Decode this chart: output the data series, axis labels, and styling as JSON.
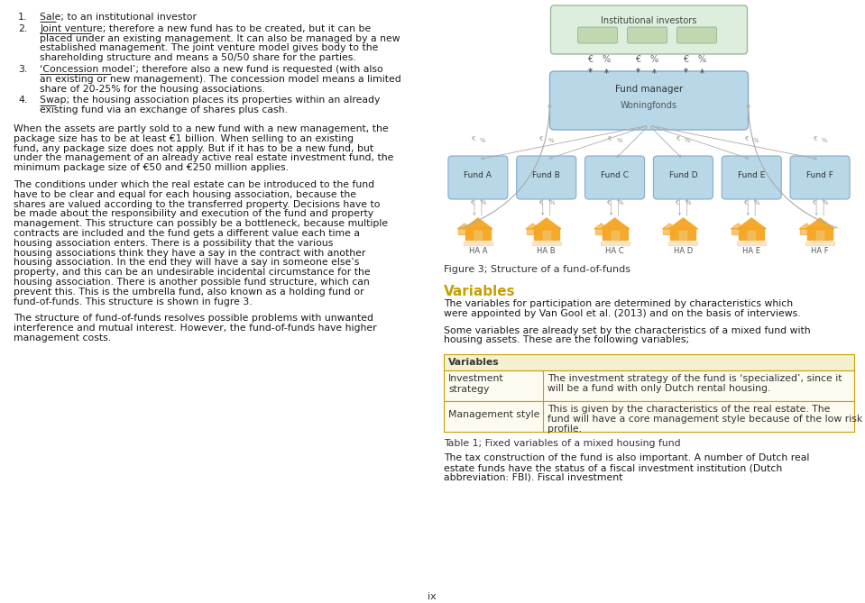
{
  "bg_color": "#ffffff",
  "left_text_blocks": [
    {
      "number": "1.",
      "label": "Sale",
      "rest": "; to an institutional investor"
    },
    {
      "number": "2.",
      "label": "Joint venture",
      "rest": "; therefore a new fund has to be created, but it can be placed under an existing management. It can also be managed by a new established management. The joint venture model gives body to the shareholding structure and means a 50/50 share for the parties."
    },
    {
      "number": "3.",
      "label": "‘Concession model’",
      "rest": "; therefore also a new fund is requested (with also an existing or new management). The concession model means a limited share of 20-25% for the housing associations."
    },
    {
      "number": "4.",
      "label": "Swap",
      "rest": "; the housing association places its properties within an already existing fund via an exchange of shares plus cash."
    }
  ],
  "paragraph1": "When the assets are partly sold to a new fund with a new management, the package size has to be at least €1 billion. When selling to an existing fund, any package size does not apply. But if it has to be a new fund, but under the management of an already active real estate investment fund, the minimum package size of €50 and €250 million applies.",
  "paragraph2": "The conditions under which the real estate can be introduced to the fund have to be clear and equal for each housing association, because the shares are valued according to the transferred property. Decisions have to be made about the responsibility and execution of the fund and property management. This structure can possibly be a bottleneck, because multiple contracts are included and the fund gets a different value each time a housing association enters. There is a possibility that the various housing associations think they have a say in the contract with another housing association. In the end they will have a say in someone else’s property, and this can be an undesirable incidental circumstance for the housing association. There is another possible fund structure, which can prevent this. This is the umbrella fund, also known as a holding fund or fund-of-funds. This structure is shown in fugre 3.",
  "paragraph3": "The structure of fund-of-funds resolves possible problems with unwanted interference and mutual interest. However, the fund-of-funds have higher management costs.",
  "fig_caption": "Figure 3; Structure of a fund-of-funds",
  "section_title": "Variables",
  "section_title_color": "#c8a000",
  "section_para1": "The variables for participation are determined by characteristics which were appointed by Van Gool et al. (2013) and on the basis of interviews.",
  "section_para2": "Some variables are already set by the characteristics of a mixed fund with housing assets. These are the following variables;",
  "table_header": "Variables",
  "table_row1_col1": "Investment\nstrategy",
  "table_row1_col2": "The investment strategy of the fund is ‘specialized’, since it will be a fund with only Dutch rental housing.",
  "table_row2_col1": "Management style",
  "table_row2_col2": "This is given by the characteristics of the real estate. The fund will have a core management style because of the low risk profile.",
  "table_caption": "Table 1; Fixed variables of a mixed housing fund",
  "bottom_para": "The tax construction of the fund is also important. A number of Dutch real estate funds have the status of a fiscal investment institution (Dutch abbreviation: FBI). Fiscal investment",
  "page_number": "ix",
  "diagram": {
    "inst_box_color": "#ddeedd",
    "fund_box_color": "#b8d8e8",
    "sub_box_color": "#b8d8e8",
    "inst_label": "Institutional investors",
    "fund_manager_label": "Fund manager",
    "woningfonds_label": "Woningfonds",
    "fund_labels": [
      "Fund A",
      "Fund B",
      "Fund C",
      "Fund D",
      "Fund E",
      "Fund F"
    ],
    "ha_labels": [
      "HA A",
      "HA B",
      "HA C",
      "HA D",
      "HA E",
      "HA F"
    ],
    "house_color": "#f5a623"
  }
}
